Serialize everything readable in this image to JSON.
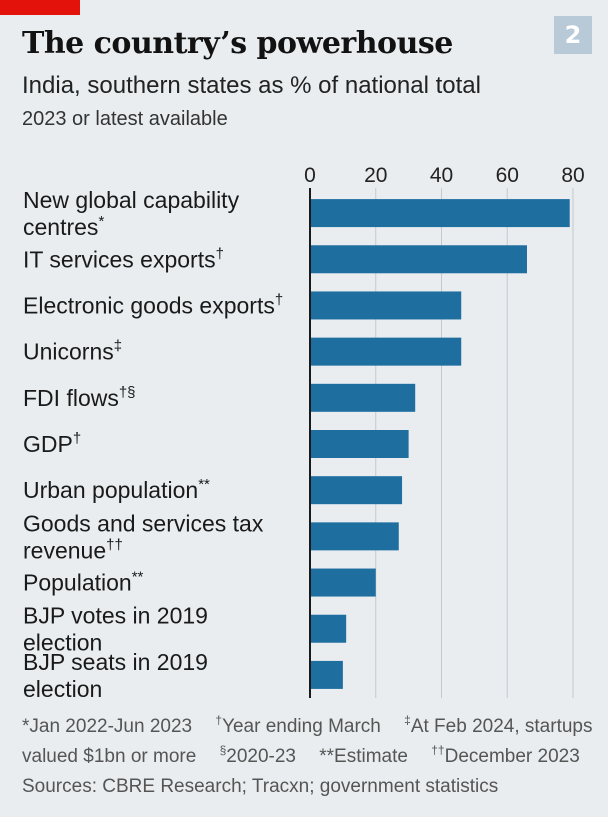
{
  "header": {
    "badge": "2",
    "title": "The country’s powerhouse",
    "subtitle": "India, southern states as % of national total",
    "subtitle2": "2023 or latest available"
  },
  "colors": {
    "bar": "#1f6ea0",
    "accent_tab": "#e3120b",
    "gridline": "#c2c9cf",
    "axis": "#1a1a1a",
    "background": "#e9edf0"
  },
  "chart_data": {
    "type": "bar",
    "orientation": "horizontal",
    "title": "The country’s powerhouse",
    "subtitle": "India, southern states as % of national total",
    "xlim": [
      0,
      80
    ],
    "xticks": [
      0,
      20,
      40,
      60,
      80
    ],
    "grid": true,
    "categories": [
      {
        "label": "New global capability centres",
        "mark": "*",
        "value": 79
      },
      {
        "label": "IT services exports",
        "mark": "†",
        "value": 66
      },
      {
        "label": "Electronic goods exports",
        "mark": "†",
        "value": 46
      },
      {
        "label": "Unicorns",
        "mark": "‡",
        "value": 46
      },
      {
        "label": "FDI flows",
        "mark": "†§",
        "value": 32
      },
      {
        "label": "GDP",
        "mark": "†",
        "value": 30
      },
      {
        "label": "Urban population",
        "mark": "**",
        "value": 28
      },
      {
        "label": "Goods and services tax revenue",
        "mark": "††",
        "value": 27
      },
      {
        "label": "Population",
        "mark": "**",
        "value": 20
      },
      {
        "label": "BJP votes in 2019 election",
        "mark": "",
        "value": 11
      },
      {
        "label": "BJP seats in 2019 election",
        "mark": "",
        "value": 10
      }
    ]
  },
  "footnotes": {
    "n1": "*Jan 2022-Jun 2023",
    "n2_mark": "†",
    "n2": "Year ending March",
    "n3_mark": "‡",
    "n3": "At Feb 2024, startups",
    "n3b": "valued $1bn or more",
    "n4_mark": "§",
    "n4": "2020-23",
    "n5": "**Estimate",
    "n6_mark": "††",
    "n6": "December 2023",
    "sources": "Sources: CBRE Research; Tracxn; government statistics"
  }
}
